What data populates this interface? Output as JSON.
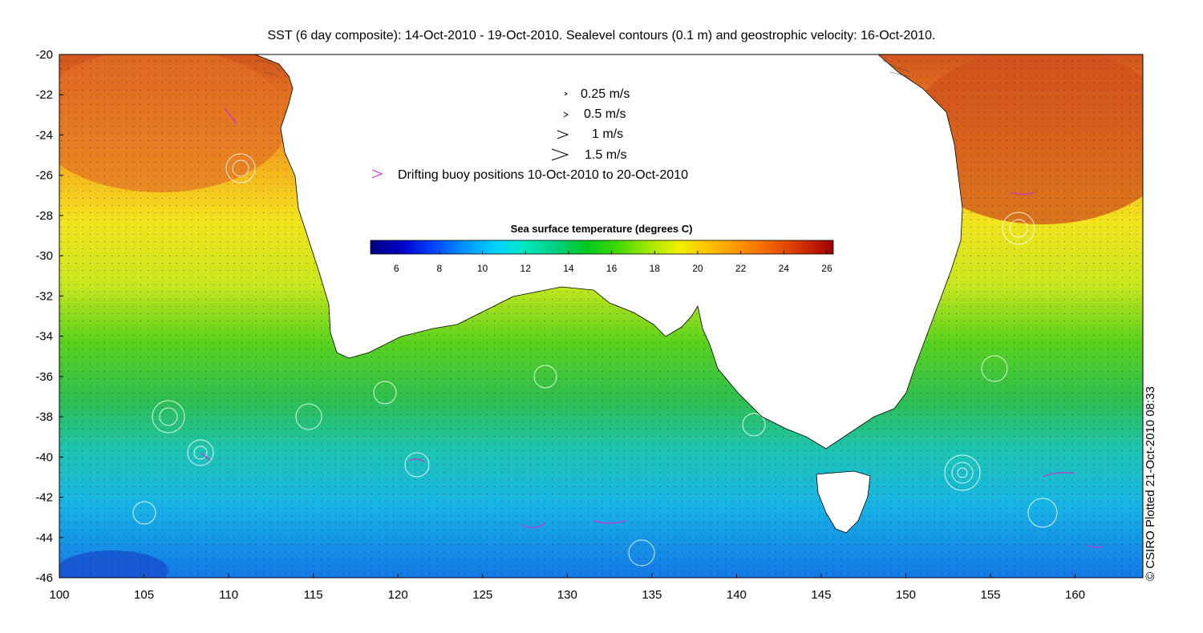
{
  "title": "SST (6 day composite): 14-Oct-2010 - 19-Oct-2010. Sealevel contours (0.1 m) and geostrophic velocity: 16-Oct-2010.",
  "credit": "© CSIRO Plotted 21-Oct-2010 08:33",
  "colors": {
    "land": "#ffffff",
    "contours": "#ffffff",
    "buoys": "#cc33cc",
    "vectors": "#000000"
  },
  "map": {
    "lon_range": [
      100,
      164
    ],
    "lat_range": [
      -46,
      -20
    ],
    "x_ticks": [
      "100",
      "105",
      "110",
      "115",
      "120",
      "125",
      "130",
      "135",
      "140",
      "145",
      "150",
      "155",
      "160"
    ],
    "y_ticks": [
      "-20",
      "-22",
      "-24",
      "-26",
      "-28",
      "-30",
      "-32",
      "-34",
      "-36",
      "-38",
      "-40",
      "-42",
      "-44",
      "-46"
    ]
  },
  "velocity_legend": [
    {
      "label": "0.25 m/s",
      "icon": "velocity-arrow-icon"
    },
    {
      "label": "0.5 m/s",
      "icon": "velocity-arrow-icon"
    },
    {
      "label": "1 m/s",
      "icon": "velocity-arrow-icon"
    },
    {
      "label": "1.5 m/s",
      "icon": "velocity-arrow-icon"
    }
  ],
  "buoy_legend": {
    "label": "Drifting buoy positions 10-Oct-2010 to 20-Oct-2010",
    "icon": "buoy-marker-icon"
  },
  "colorbar": {
    "title": "Sea surface temperature (degrees C)",
    "range": [
      4.8,
      26.3
    ],
    "ticks": [
      "6",
      "8",
      "10",
      "12",
      "14",
      "16",
      "18",
      "20",
      "22",
      "24",
      "26"
    ],
    "colors": [
      "#000080",
      "#0000c8",
      "#0040ff",
      "#0090ff",
      "#00d0ff",
      "#00e8c0",
      "#00d080",
      "#00c820",
      "#40d800",
      "#a0e800",
      "#f0f000",
      "#ffc000",
      "#ff9000",
      "#f06000",
      "#d03000",
      "#a00000"
    ]
  }
}
